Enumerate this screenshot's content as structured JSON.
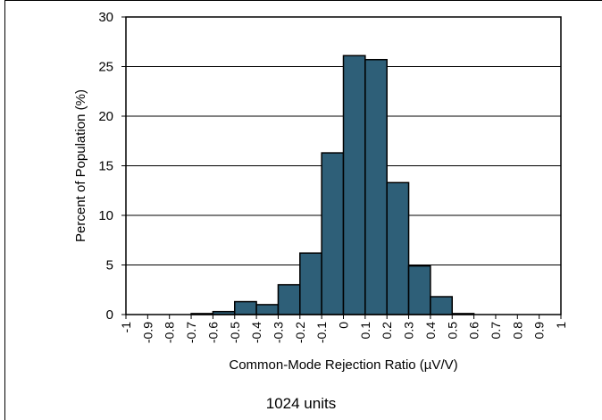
{
  "chart_data": {
    "type": "bar",
    "xlabel": "Common-Mode Rejection Ratio (µV/V)",
    "ylabel": "Percent of Population (%)",
    "ylim": [
      0,
      30
    ],
    "yticks": [
      0,
      5,
      10,
      15,
      20,
      25,
      30
    ],
    "xticks": [
      "-1",
      "-0.9",
      "-0.8",
      "-0.7",
      "-0.6",
      "-0.5",
      "-0.4",
      "-0.3",
      "-0.2",
      "-0.1",
      "0",
      "0.1",
      "0.2",
      "0.3",
      "0.4",
      "0.5",
      "0.6",
      "0.7",
      "0.8",
      "0.9",
      "1"
    ],
    "bins": [
      {
        "from": -0.7,
        "to": -0.6,
        "value": 0.1
      },
      {
        "from": -0.6,
        "to": -0.5,
        "value": 0.3
      },
      {
        "from": -0.5,
        "to": -0.4,
        "value": 1.3
      },
      {
        "from": -0.4,
        "to": -0.3,
        "value": 1.0
      },
      {
        "from": -0.3,
        "to": -0.2,
        "value": 3.0
      },
      {
        "from": -0.2,
        "to": -0.1,
        "value": 6.2
      },
      {
        "from": -0.1,
        "to": 0.0,
        "value": 16.3
      },
      {
        "from": 0.0,
        "to": 0.1,
        "value": 26.1
      },
      {
        "from": 0.1,
        "to": 0.2,
        "value": 25.7
      },
      {
        "from": 0.2,
        "to": 0.3,
        "value": 13.3
      },
      {
        "from": 0.3,
        "to": 0.4,
        "value": 4.9
      },
      {
        "from": 0.4,
        "to": 0.5,
        "value": 1.8
      },
      {
        "from": 0.5,
        "to": 0.6,
        "value": 0.1
      }
    ],
    "bar_color": "#2e5f78",
    "grid": true
  },
  "caption": "1024 units"
}
